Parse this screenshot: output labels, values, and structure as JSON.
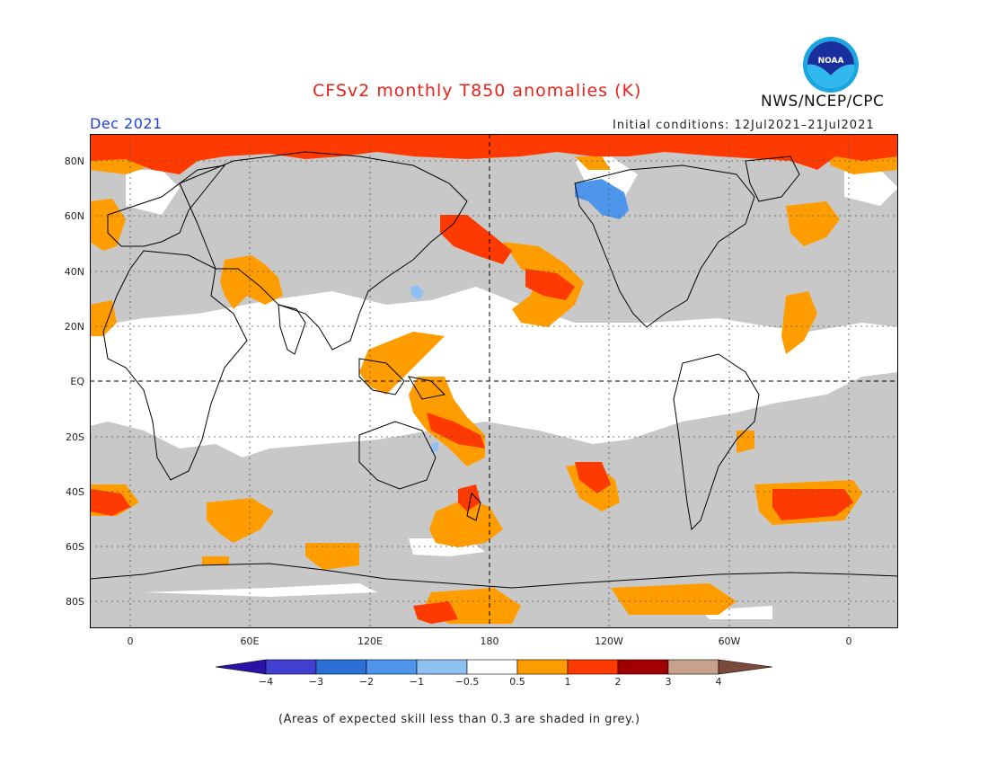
{
  "title": "CFSv2 monthly T850 anomalies (K)",
  "month": "Dec 2021",
  "initial_conditions": "Initial conditions: 12Jul2021–21Jul2021",
  "org": "NWS/NCEP/CPC",
  "logo_text": "NOAA",
  "lat_labels": [
    "80N",
    "60N",
    "40N",
    "20N",
    "EQ",
    "20S",
    "40S",
    "60S",
    "80S"
  ],
  "lon_labels": [
    "0",
    "60E",
    "120E",
    "180",
    "120W",
    "60W",
    "0"
  ],
  "colorbar": {
    "labels": [
      "−4",
      "−3",
      "−2",
      "−1",
      "−0.5",
      "0.5",
      "1",
      "2",
      "3",
      "4"
    ],
    "colors": [
      "#2a12a6",
      "#4040d0",
      "#2a6fd6",
      "#4d96ec",
      "#8fc0f2",
      "#ffffff",
      "#ff9d00",
      "#ff3a00",
      "#a00000",
      "#c8a08c",
      "#7a4a3a"
    ]
  },
  "colors": {
    "land_outline": "#000000",
    "grey_skill": "#c8c8c8",
    "anom_05_1": "#ff9d00",
    "anom_1_2": "#ff3a00",
    "anom_neg_05_1": "#8fc0f2",
    "anom_neg_1_2": "#4d96ec"
  },
  "footnote": "(Areas of expected skill less than 0.3 are shaded in grey.)"
}
